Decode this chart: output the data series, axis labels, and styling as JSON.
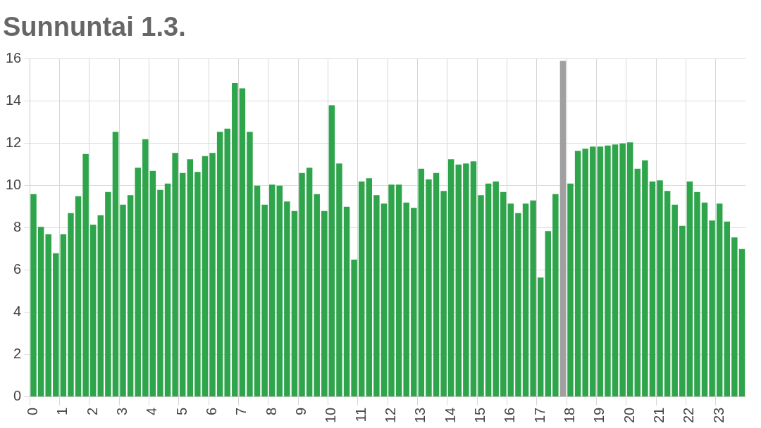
{
  "chart_data": {
    "type": "bar",
    "title": "Sunnuntai 1.3.",
    "categories": [
      "0",
      null,
      null,
      null,
      "1",
      null,
      null,
      null,
      "2",
      null,
      null,
      null,
      "3",
      null,
      null,
      null,
      "4",
      null,
      null,
      null,
      "5",
      null,
      null,
      null,
      "6",
      null,
      null,
      null,
      "7",
      null,
      null,
      null,
      "8",
      null,
      null,
      null,
      "9",
      null,
      null,
      null,
      "10",
      null,
      null,
      null,
      "11",
      null,
      null,
      null,
      "12",
      null,
      null,
      null,
      "13",
      null,
      null,
      null,
      "14",
      null,
      null,
      null,
      "15",
      null,
      null,
      null,
      "16",
      null,
      null,
      null,
      "17",
      null,
      null,
      null,
      "18",
      null,
      null,
      null,
      "19",
      null,
      null,
      null,
      "20",
      null,
      null,
      null,
      "21",
      null,
      null,
      null,
      "22",
      null,
      null,
      null,
      "23",
      null,
      null,
      null
    ],
    "values": [
      9.6,
      8.05,
      7.7,
      6.8,
      7.7,
      8.7,
      9.5,
      11.5,
      8.15,
      8.6,
      9.7,
      12.55,
      9.1,
      9.55,
      10.85,
      12.2,
      10.7,
      9.8,
      10.1,
      11.55,
      10.6,
      11.25,
      10.65,
      11.4,
      11.55,
      12.55,
      12.7,
      14.85,
      14.6,
      12.55,
      10.0,
      9.1,
      10.05,
      10.0,
      9.25,
      8.8,
      10.6,
      10.85,
      9.6,
      8.8,
      13.8,
      11.05,
      9.0,
      6.5,
      10.2,
      10.35,
      9.55,
      9.15,
      10.05,
      10.05,
      9.2,
      8.95,
      10.8,
      10.3,
      10.6,
      9.75,
      11.25,
      11.0,
      11.05,
      11.15,
      9.55,
      10.1,
      10.2,
      9.7,
      9.15,
      8.7,
      9.15,
      9.3,
      5.65,
      7.85,
      9.6,
      15.9,
      10.1,
      11.65,
      11.75,
      11.85,
      11.85,
      11.9,
      11.95,
      12.0,
      12.05,
      10.8,
      11.2,
      10.2,
      10.25,
      9.75,
      9.1,
      8.1,
      10.2,
      9.7,
      9.2,
      8.35,
      9.15,
      8.3,
      7.55,
      7.0
    ],
    "colors": [
      "#2ea44b",
      "#2ea44b",
      "#2ea44b",
      "#2ea44b",
      "#2ea44b",
      "#2ea44b",
      "#2ea44b",
      "#2ea44b",
      "#2ea44b",
      "#2ea44b",
      "#2ea44b",
      "#2ea44b",
      "#2ea44b",
      "#2ea44b",
      "#2ea44b",
      "#2ea44b",
      "#2ea44b",
      "#2ea44b",
      "#2ea44b",
      "#2ea44b",
      "#2ea44b",
      "#2ea44b",
      "#2ea44b",
      "#2ea44b",
      "#2ea44b",
      "#2ea44b",
      "#2ea44b",
      "#2ea44b",
      "#2ea44b",
      "#2ea44b",
      "#2ea44b",
      "#2ea44b",
      "#2ea44b",
      "#2ea44b",
      "#2ea44b",
      "#2ea44b",
      "#2ea44b",
      "#2ea44b",
      "#2ea44b",
      "#2ea44b",
      "#2ea44b",
      "#2ea44b",
      "#2ea44b",
      "#2ea44b",
      "#2ea44b",
      "#2ea44b",
      "#2ea44b",
      "#2ea44b",
      "#2ea44b",
      "#2ea44b",
      "#2ea44b",
      "#2ea44b",
      "#2ea44b",
      "#2ea44b",
      "#2ea44b",
      "#2ea44b",
      "#2ea44b",
      "#2ea44b",
      "#2ea44b",
      "#2ea44b",
      "#2ea44b",
      "#2ea44b",
      "#2ea44b",
      "#2ea44b",
      "#2ea44b",
      "#2ea44b",
      "#2ea44b",
      "#2ea44b",
      "#2ea44b",
      "#2ea44b",
      "#2ea44b",
      "#a0a0a0",
      "#2ea44b",
      "#2ea44b",
      "#2ea44b",
      "#2ea44b",
      "#2ea44b",
      "#2ea44b",
      "#2ea44b",
      "#2ea44b",
      "#2ea44b",
      "#2ea44b",
      "#2ea44b",
      "#2ea44b",
      "#2ea44b",
      "#2ea44b",
      "#2ea44b",
      "#2ea44b",
      "#2ea44b",
      "#2ea44b",
      "#2ea44b",
      "#2ea44b",
      "#2ea44b",
      "#2ea44b",
      "#2ea44b",
      "#2ea44b"
    ],
    "ylim": [
      0,
      16
    ],
    "yticks": [
      0,
      2,
      4,
      6,
      8,
      10,
      12,
      14,
      16
    ],
    "grid": true
  }
}
